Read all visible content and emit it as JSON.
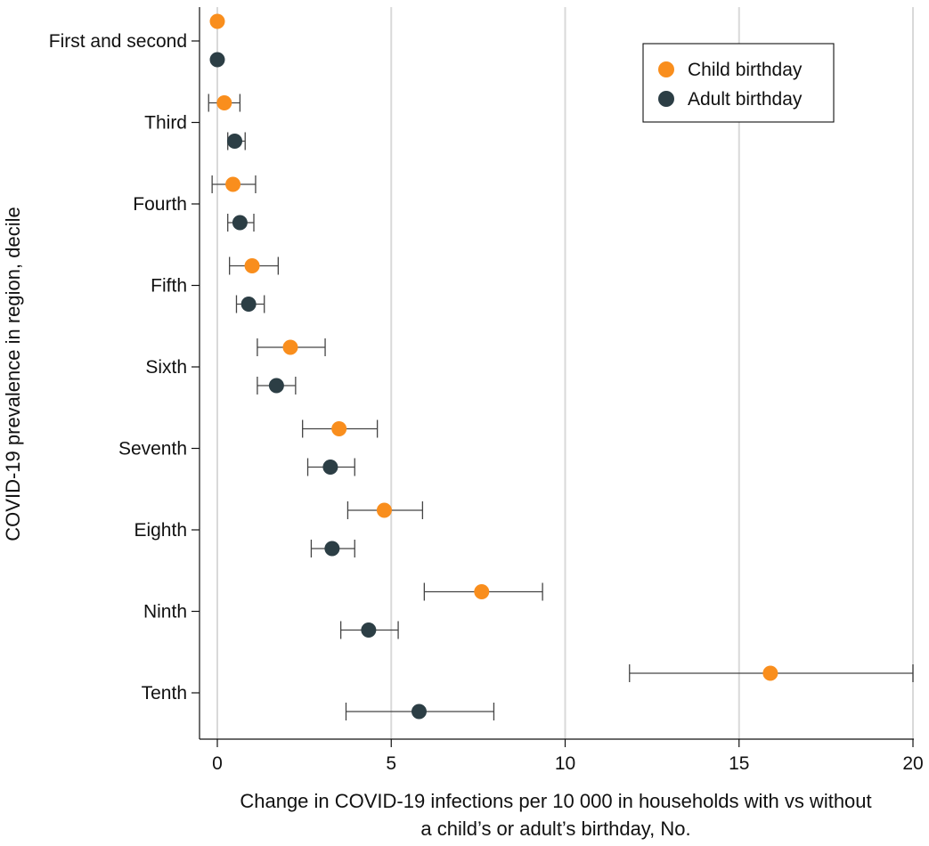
{
  "chart_data": {
    "type": "scatter",
    "subtype": "dot-and-whisker",
    "orientation": "horizontal",
    "title": "",
    "ylabel": "COVID-19 prevalence in region, decile",
    "xlabel": [
      "Change in COVID-19 infections per 10 000 in households with vs without",
      "a child’s or adult’s birthday, No."
    ],
    "xlim": [
      -0.5,
      20
    ],
    "xticks": [
      0,
      5,
      10,
      15,
      20
    ],
    "xtick_labels": [
      "0",
      "5",
      "10",
      "15",
      "20"
    ],
    "grid": "vertical lines at x ticks",
    "legend_position": "top-right",
    "categories": [
      "First and second",
      "Third",
      "Fourth",
      "Fifth",
      "Sixth",
      "Seventh",
      "Eighth",
      "Ninth",
      "Tenth"
    ],
    "series": [
      {
        "name": "Child birthday",
        "color": "#F98E1D",
        "values": [
          0.0,
          0.2,
          0.45,
          1.0,
          2.1,
          3.5,
          4.8,
          7.6,
          15.9
        ],
        "ci_low": [
          null,
          -0.25,
          -0.15,
          0.35,
          1.15,
          2.45,
          3.75,
          5.95,
          11.85
        ],
        "ci_high": [
          null,
          0.65,
          1.1,
          1.75,
          3.1,
          4.6,
          5.9,
          9.35,
          20.0
        ]
      },
      {
        "name": "Adult birthday",
        "color": "#2C3E45",
        "values": [
          0.0,
          0.5,
          0.65,
          0.9,
          1.7,
          3.25,
          3.3,
          4.35,
          5.8
        ],
        "ci_low": [
          null,
          0.3,
          0.3,
          0.55,
          1.15,
          2.6,
          2.7,
          3.55,
          3.7
        ],
        "ci_high": [
          null,
          0.8,
          1.05,
          1.35,
          2.25,
          3.95,
          3.95,
          5.2,
          7.95
        ]
      }
    ]
  }
}
